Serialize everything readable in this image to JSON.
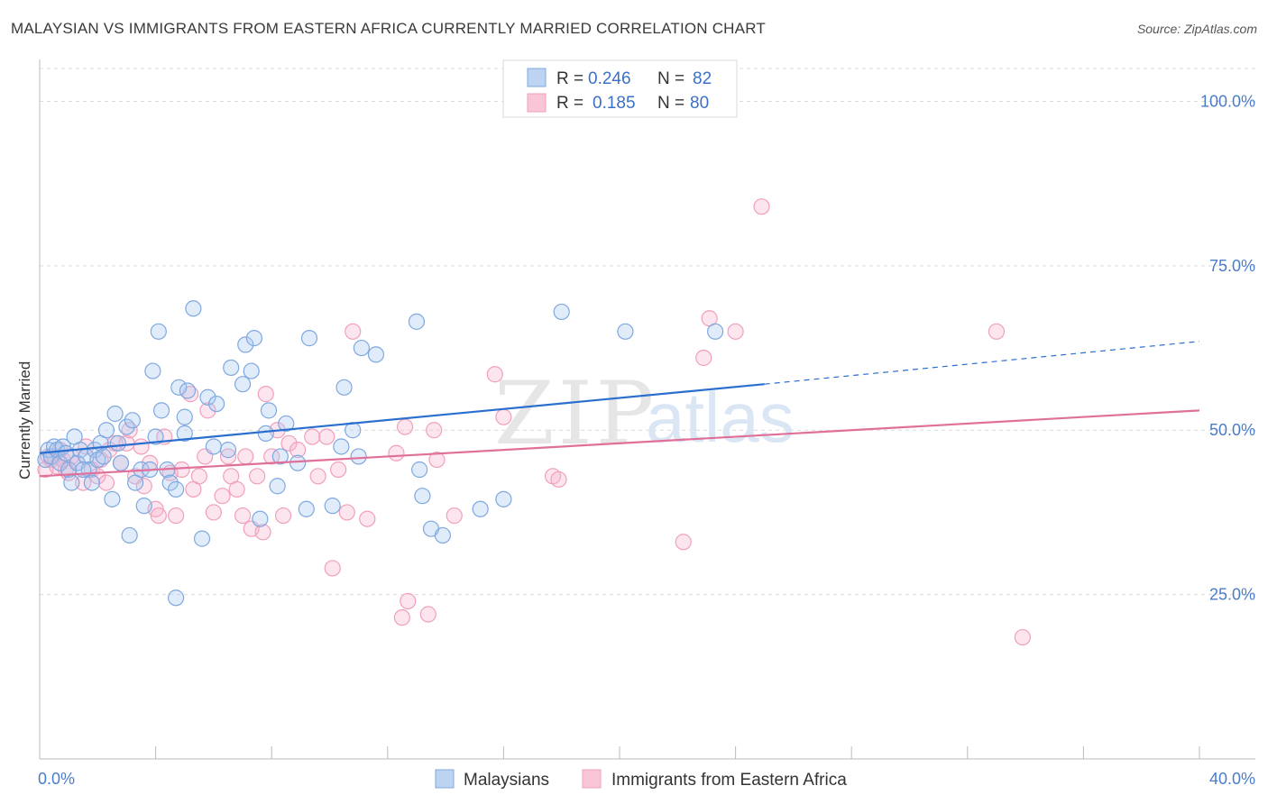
{
  "title": "MALAYSIAN VS IMMIGRANTS FROM EASTERN AFRICA CURRENTLY MARRIED CORRELATION CHART",
  "source": "Source: ZipAtlas.com",
  "watermark": {
    "part1": "ZIP",
    "part2": "atlas"
  },
  "legend_top": {
    "rows": [
      {
        "r_label": "R =",
        "r_value": "0.246",
        "n_label": "N =",
        "n_value": "82"
      },
      {
        "r_label": "R =",
        "r_value": "0.185",
        "n_label": "N =",
        "n_value": "80"
      }
    ]
  },
  "legend_bottom": [
    "Malaysians",
    "Immigrants from Eastern Africa"
  ],
  "chart_data": {
    "type": "scatter",
    "title": "MALAYSIAN VS IMMIGRANTS FROM EASTERN AFRICA CURRENTLY MARRIED CORRELATION CHART",
    "xlabel": "",
    "ylabel": "Currently Married",
    "xlim": [
      0,
      40
    ],
    "ylim": [
      0,
      105
    ],
    "x_tick_labels": [
      "0.0%",
      "40.0%"
    ],
    "y_tick_labels": [
      "25.0%",
      "50.0%",
      "75.0%",
      "100.0%"
    ],
    "y_ticks": [
      25,
      50,
      75,
      100
    ],
    "grid": "horizontal dashed",
    "legend_position": "top-center and bottom",
    "colors": {
      "Malaysians": "#7fa8e0",
      "Immigrants from Eastern Africa": "#f0a0bb",
      "blue_line": "#2a6fcf",
      "pink_line": "#e07099"
    },
    "series": [
      {
        "name": "Malaysians",
        "R": 0.246,
        "N": 82,
        "trend": {
          "x0": 0,
          "y0": 46.5,
          "x1": 25.0,
          "y1": 57.0,
          "dashed_to_x": 40,
          "dashed_to_y": 63.5
        },
        "points": [
          [
            0.2,
            45.5
          ],
          [
            0.3,
            47
          ],
          [
            0.4,
            46
          ],
          [
            0.5,
            47.5
          ],
          [
            0.6,
            47
          ],
          [
            0.7,
            45
          ],
          [
            0.8,
            47.5
          ],
          [
            1.0,
            44
          ],
          [
            1.1,
            42
          ],
          [
            1.2,
            49
          ],
          [
            1.3,
            45
          ],
          [
            1.4,
            47
          ],
          [
            1.6,
            46
          ],
          [
            1.7,
            44
          ],
          [
            1.8,
            42
          ],
          [
            1.9,
            47
          ],
          [
            2.0,
            45.5
          ],
          [
            2.1,
            48
          ],
          [
            2.3,
            50
          ],
          [
            2.5,
            39.5
          ],
          [
            2.6,
            52.5
          ],
          [
            2.7,
            48
          ],
          [
            2.8,
            45
          ],
          [
            3.0,
            50.5
          ],
          [
            3.1,
            34
          ],
          [
            3.2,
            51.5
          ],
          [
            3.3,
            42
          ],
          [
            3.5,
            44
          ],
          [
            3.6,
            38.5
          ],
          [
            3.8,
            44
          ],
          [
            3.9,
            59
          ],
          [
            4.0,
            49
          ],
          [
            4.1,
            65
          ],
          [
            4.2,
            53
          ],
          [
            4.4,
            44
          ],
          [
            4.5,
            42
          ],
          [
            4.7,
            41
          ],
          [
            4.8,
            56.5
          ],
          [
            5.0,
            49.5
          ],
          [
            5.0,
            52
          ],
          [
            5.1,
            56
          ],
          [
            5.3,
            68.5
          ],
          [
            5.6,
            33.5
          ],
          [
            5.8,
            55
          ],
          [
            6.0,
            47.5
          ],
          [
            6.1,
            54
          ],
          [
            6.5,
            47
          ],
          [
            6.6,
            59.5
          ],
          [
            7.0,
            57
          ],
          [
            7.1,
            63
          ],
          [
            7.3,
            59
          ],
          [
            7.4,
            64
          ],
          [
            7.6,
            36.5
          ],
          [
            7.8,
            49.5
          ],
          [
            7.9,
            53
          ],
          [
            8.2,
            41.5
          ],
          [
            8.3,
            46
          ],
          [
            8.5,
            51
          ],
          [
            8.9,
            45
          ],
          [
            9.2,
            38
          ],
          [
            9.3,
            64
          ],
          [
            10.1,
            38.5
          ],
          [
            10.4,
            47.5
          ],
          [
            10.5,
            56.5
          ],
          [
            10.8,
            50
          ],
          [
            11.0,
            46
          ],
          [
            11.1,
            62.5
          ],
          [
            11.6,
            61.5
          ],
          [
            13.1,
            44
          ],
          [
            13.2,
            40
          ],
          [
            13.5,
            35
          ],
          [
            13.9,
            34
          ],
          [
            13.0,
            66.5
          ],
          [
            15.2,
            38
          ],
          [
            16.0,
            39.5
          ],
          [
            18.0,
            68
          ],
          [
            20.2,
            65
          ],
          [
            23.3,
            65
          ],
          [
            1.5,
            44
          ],
          [
            2.2,
            46
          ],
          [
            4.7,
            24.5
          ],
          [
            0.9,
            46.5
          ]
        ]
      },
      {
        "name": "Immigrants from Eastern Africa",
        "R": 0.185,
        "N": 80,
        "trend": {
          "x0": 0,
          "y0": 43.0,
          "x1": 40,
          "y1": 53.0
        },
        "points": [
          [
            0.2,
            44
          ],
          [
            0.3,
            46
          ],
          [
            0.4,
            45.5
          ],
          [
            0.5,
            46
          ],
          [
            0.6,
            44.5
          ],
          [
            0.7,
            47
          ],
          [
            0.8,
            45.5
          ],
          [
            0.9,
            44
          ],
          [
            1.0,
            43.5
          ],
          [
            1.1,
            46
          ],
          [
            1.3,
            45
          ],
          [
            1.5,
            42
          ],
          [
            1.6,
            47.5
          ],
          [
            1.8,
            44
          ],
          [
            2.0,
            43
          ],
          [
            2.1,
            45.5
          ],
          [
            2.3,
            42
          ],
          [
            2.4,
            47
          ],
          [
            2.6,
            48
          ],
          [
            2.8,
            45
          ],
          [
            3.0,
            48
          ],
          [
            3.1,
            50
          ],
          [
            3.3,
            43
          ],
          [
            3.5,
            47.5
          ],
          [
            3.6,
            41.5
          ],
          [
            3.8,
            45
          ],
          [
            4.0,
            38
          ],
          [
            4.1,
            37
          ],
          [
            4.3,
            49
          ],
          [
            4.5,
            43.5
          ],
          [
            4.7,
            37
          ],
          [
            4.9,
            44
          ],
          [
            5.2,
            55.5
          ],
          [
            5.3,
            41
          ],
          [
            5.5,
            43
          ],
          [
            5.7,
            46
          ],
          [
            5.8,
            53
          ],
          [
            6.0,
            37.5
          ],
          [
            6.3,
            40
          ],
          [
            6.5,
            46
          ],
          [
            6.6,
            43
          ],
          [
            6.8,
            41
          ],
          [
            7.0,
            37
          ],
          [
            7.1,
            46
          ],
          [
            7.3,
            35
          ],
          [
            7.5,
            43
          ],
          [
            7.7,
            34.5
          ],
          [
            7.8,
            55.5
          ],
          [
            8.0,
            46
          ],
          [
            8.2,
            50
          ],
          [
            8.4,
            37
          ],
          [
            8.6,
            48
          ],
          [
            8.9,
            47
          ],
          [
            9.4,
            49
          ],
          [
            9.6,
            43
          ],
          [
            9.9,
            49
          ],
          [
            10.1,
            29
          ],
          [
            10.3,
            44
          ],
          [
            10.6,
            37.5
          ],
          [
            10.8,
            65
          ],
          [
            11.3,
            36.5
          ],
          [
            12.3,
            46.5
          ],
          [
            12.6,
            50.5
          ],
          [
            12.7,
            24
          ],
          [
            12.5,
            21.5
          ],
          [
            13.4,
            22
          ],
          [
            13.6,
            50
          ],
          [
            14.3,
            37
          ],
          [
            15.7,
            58.5
          ],
          [
            16.0,
            52
          ],
          [
            17.7,
            43
          ],
          [
            17.9,
            42.5
          ],
          [
            22.2,
            33
          ],
          [
            22.9,
            61
          ],
          [
            23.1,
            67
          ],
          [
            24.0,
            65
          ],
          [
            24.9,
            84
          ],
          [
            33.0,
            65
          ],
          [
            33.9,
            18.5
          ],
          [
            13.7,
            45.5
          ]
        ]
      }
    ]
  }
}
